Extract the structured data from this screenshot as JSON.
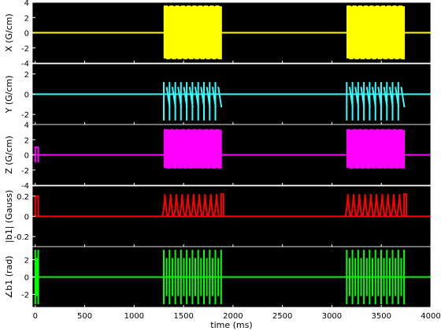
{
  "chart_data": {
    "type": "line",
    "xlabel": "time (ms)",
    "xlim": [
      -30,
      4000
    ],
    "x_ticks": [
      0,
      500,
      1000,
      1500,
      2000,
      2500,
      3000,
      3500,
      4000
    ],
    "x_tick_labels": [
      "0",
      "500",
      "1000",
      "1500",
      "2000",
      "2500",
      "3000",
      "3500",
      "4000"
    ],
    "background": "#000000",
    "grid": false,
    "panels": [
      {
        "key": "x",
        "ylabel": "X (G/cm)",
        "color": "#ffff00",
        "ylim": [
          -4,
          4
        ],
        "y_ticks": [
          -4,
          -2,
          0,
          2,
          4
        ],
        "y_tick_labels": [
          "-4",
          "-2",
          "0",
          "2",
          "4"
        ],
        "baseline": 0,
        "segments": [
          {
            "kind": "gradient_train",
            "start": 1300,
            "end": 1880,
            "pulses": 10,
            "hi": 3.5,
            "lo": -3.4
          },
          {
            "kind": "gradient_train",
            "start": 3150,
            "end": 3730,
            "pulses": 10,
            "hi": 3.5,
            "lo": -3.4
          }
        ]
      },
      {
        "key": "y",
        "ylabel": "Y (G/cm)",
        "color": "#33ffff",
        "ylim": [
          -3,
          3
        ],
        "y_ticks": [
          -2,
          0,
          2
        ],
        "y_tick_labels": [
          "-2",
          "0",
          "2"
        ],
        "baseline": 0,
        "segments": [
          {
            "kind": "blips",
            "start": 1300,
            "end": 1880,
            "pulses": 10,
            "hi": 1.2,
            "lo": -2.6
          },
          {
            "kind": "blips",
            "start": 3150,
            "end": 3730,
            "pulses": 10,
            "hi": 1.2,
            "lo": -2.6
          }
        ]
      },
      {
        "key": "z",
        "ylabel": "Z (G/cm)",
        "color": "#ff00ff",
        "ylim": [
          -4,
          4
        ],
        "y_ticks": [
          -4,
          -2,
          0,
          2,
          4
        ],
        "y_tick_labels": [
          "-4",
          "-2",
          "0",
          "2",
          "4"
        ],
        "baseline": 0,
        "segments": [
          {
            "kind": "block",
            "start": 0,
            "end": 30,
            "hi": 1.0,
            "lo": -1.0
          },
          {
            "kind": "gradient_train",
            "start": 1300,
            "end": 1880,
            "pulses": 10,
            "hi": 3.3,
            "lo": -1.7
          },
          {
            "kind": "gradient_train",
            "start": 3150,
            "end": 3730,
            "pulses": 10,
            "hi": 3.3,
            "lo": -1.7
          }
        ]
      },
      {
        "key": "b1mag",
        "ylabel": "|b1| (Gauss)",
        "color": "#ff0000",
        "ylim": [
          -0.3,
          0.3
        ],
        "y_ticks": [
          -0.2,
          0,
          0.2
        ],
        "y_tick_labels": [
          "-0.2",
          "0",
          "0.2"
        ],
        "baseline": 0,
        "segments": [
          {
            "kind": "block",
            "start": 0,
            "end": 30,
            "hi": 0.2,
            "lo": 0
          },
          {
            "kind": "rf_spikes",
            "start": 1300,
            "end": 1880,
            "pulses": 10,
            "hi": 0.22,
            "lo": 0
          },
          {
            "kind": "rf_spikes",
            "start": 3150,
            "end": 3730,
            "pulses": 10,
            "hi": 0.22,
            "lo": 0
          }
        ]
      },
      {
        "key": "b1phase",
        "ylabel": "∠b1 (rad)",
        "color": "#00ff00",
        "ylim": [
          -3.5,
          3.5
        ],
        "y_ticks": [
          -2,
          0,
          2
        ],
        "y_tick_labels": [
          "-2",
          "0",
          "2"
        ],
        "baseline": 0,
        "segments": [
          {
            "kind": "phase_wrap",
            "start": 0,
            "end": 30,
            "pulses": 1,
            "hi": 3.14,
            "lo": -3.14
          },
          {
            "kind": "phase_wrap",
            "start": 1300,
            "end": 1880,
            "pulses": 10,
            "hi": 3.14,
            "lo": -3.14
          },
          {
            "kind": "phase_wrap",
            "start": 3150,
            "end": 3730,
            "pulses": 10,
            "hi": 3.14,
            "lo": -3.14
          }
        ]
      }
    ]
  }
}
